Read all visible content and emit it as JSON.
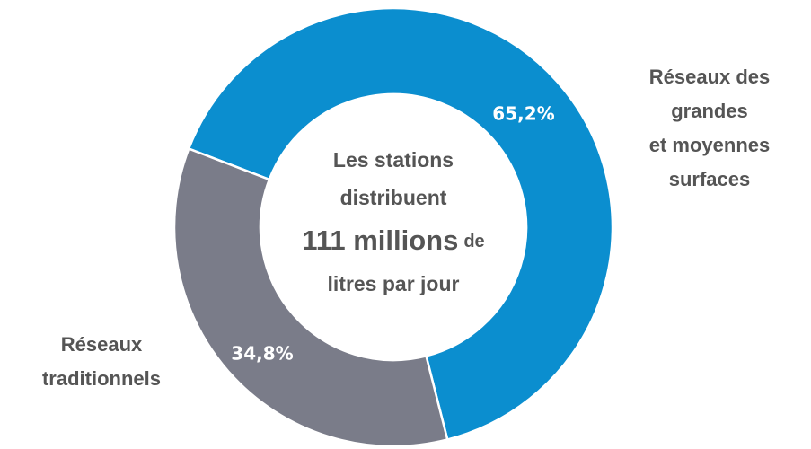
{
  "chart_data": {
    "type": "donut",
    "categories": [
      [
        "Réseaux des",
        "grandes",
        "et moyennes",
        "surfaces"
      ],
      [
        "Réseaux",
        "traditionnels"
      ]
    ],
    "values": [
      65.2,
      34.8
    ],
    "value_labels": [
      "65,2%",
      "34,8%"
    ],
    "colors": [
      "#0b8ecf",
      "#7a7c89"
    ],
    "center_text": [
      [
        "Les stations"
      ],
      [
        "distribuent"
      ],
      [
        "111 millions",
        "de"
      ],
      [
        "litres par jour"
      ]
    ]
  }
}
